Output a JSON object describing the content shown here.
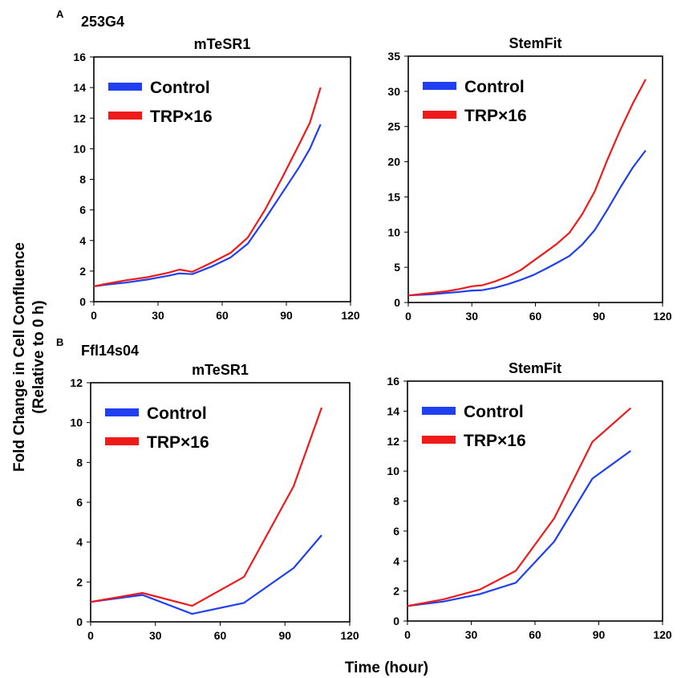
{
  "ylabel_line1": "Fold Change in Cell Confluence",
  "ylabel_line2": "(Relative to 0 h)",
  "xlabel": "Time (hour)",
  "colors": {
    "control": "#1f3ff0",
    "trp": "#ef1b1b"
  },
  "panels": [
    {
      "letter": "A",
      "title": "253G4"
    },
    {
      "letter": "B",
      "title": "Ffl14s04"
    }
  ],
  "chart_data": [
    {
      "type": "line",
      "panel": "A",
      "title": "mTeSR1",
      "xlim": [
        0,
        120
      ],
      "ylim": [
        0,
        16
      ],
      "xticks": [
        0,
        30,
        60,
        90,
        120
      ],
      "yticks": [
        0,
        2,
        4,
        6,
        8,
        10,
        12,
        14,
        16
      ],
      "grid": false,
      "legend": "top-left",
      "series": [
        {
          "name": "Control",
          "color": "#1f3ff0",
          "x": [
            0,
            5,
            15,
            25,
            35,
            40,
            46,
            55,
            64,
            72,
            80,
            88,
            96,
            101,
            106
          ],
          "y": [
            1.0,
            1.1,
            1.25,
            1.45,
            1.7,
            1.85,
            1.8,
            2.3,
            2.9,
            3.8,
            5.4,
            7.1,
            8.8,
            10.0,
            11.6
          ]
        },
        {
          "name": "TRP×16",
          "color": "#ef1b1b",
          "x": [
            0,
            5,
            15,
            25,
            35,
            40,
            46,
            55,
            64,
            72,
            80,
            88,
            96,
            101,
            106
          ],
          "y": [
            1.0,
            1.15,
            1.4,
            1.6,
            1.9,
            2.1,
            1.95,
            2.55,
            3.2,
            4.2,
            6.0,
            8.1,
            10.3,
            11.7,
            14.0
          ]
        }
      ]
    },
    {
      "type": "line",
      "panel": "A",
      "title": "StemFit",
      "xlim": [
        0,
        120
      ],
      "ylim": [
        0,
        35
      ],
      "xticks": [
        0,
        30,
        60,
        90,
        120
      ],
      "yticks": [
        0,
        5,
        10,
        15,
        20,
        25,
        30,
        35
      ],
      "grid": false,
      "legend": "top-left",
      "series": [
        {
          "name": "Control",
          "color": "#1f3ff0",
          "x": [
            0,
            6,
            12,
            18,
            24,
            30,
            35,
            41,
            47,
            53,
            59,
            65,
            70,
            76,
            82,
            88,
            94,
            100,
            106,
            112
          ],
          "y": [
            1.0,
            1.1,
            1.2,
            1.35,
            1.5,
            1.7,
            1.75,
            2.1,
            2.6,
            3.2,
            3.9,
            4.8,
            5.6,
            6.6,
            8.2,
            10.3,
            13.2,
            16.3,
            19.2,
            21.6
          ]
        },
        {
          "name": "TRP×16",
          "color": "#ef1b1b",
          "x": [
            0,
            6,
            12,
            18,
            24,
            30,
            35,
            41,
            47,
            53,
            59,
            65,
            70,
            76,
            82,
            88,
            94,
            100,
            106,
            112
          ],
          "y": [
            1.0,
            1.2,
            1.4,
            1.6,
            1.9,
            2.3,
            2.45,
            3.0,
            3.7,
            4.6,
            5.9,
            7.2,
            8.3,
            9.9,
            12.5,
            15.8,
            20.3,
            24.5,
            28.3,
            31.7
          ]
        }
      ]
    },
    {
      "type": "line",
      "panel": "B",
      "title": "mTeSR1",
      "xlim": [
        0,
        120
      ],
      "ylim": [
        0,
        12
      ],
      "xticks": [
        0,
        30,
        60,
        90,
        120
      ],
      "yticks": [
        0,
        2,
        4,
        6,
        8,
        10,
        12
      ],
      "grid": false,
      "legend": "top-left",
      "series": [
        {
          "name": "Control",
          "color": "#1f3ff0",
          "x": [
            0,
            24,
            47,
            71,
            94,
            107
          ],
          "y": [
            1.0,
            1.35,
            0.4,
            0.95,
            2.7,
            4.35
          ]
        },
        {
          "name": "TRP×16",
          "color": "#ef1b1b",
          "x": [
            0,
            24,
            47,
            71,
            94,
            107
          ],
          "y": [
            1.0,
            1.45,
            0.8,
            2.25,
            6.8,
            10.75
          ]
        }
      ]
    },
    {
      "type": "line",
      "panel": "B",
      "title": "StemFit",
      "xlim": [
        0,
        120
      ],
      "ylim": [
        0,
        16
      ],
      "xticks": [
        0,
        30,
        60,
        90,
        120
      ],
      "yticks": [
        0,
        2,
        4,
        6,
        8,
        10,
        12,
        14,
        16
      ],
      "grid": false,
      "legend": "top-left",
      "series": [
        {
          "name": "Control",
          "color": "#1f3ff0",
          "x": [
            0,
            17,
            34,
            51,
            69,
            87,
            105
          ],
          "y": [
            1.0,
            1.3,
            1.8,
            2.55,
            5.3,
            9.5,
            11.35
          ]
        },
        {
          "name": "TRP×16",
          "color": "#ef1b1b",
          "x": [
            0,
            17,
            34,
            51,
            69,
            87,
            105
          ],
          "y": [
            1.0,
            1.45,
            2.1,
            3.35,
            6.85,
            11.95,
            14.2
          ]
        }
      ]
    }
  ]
}
